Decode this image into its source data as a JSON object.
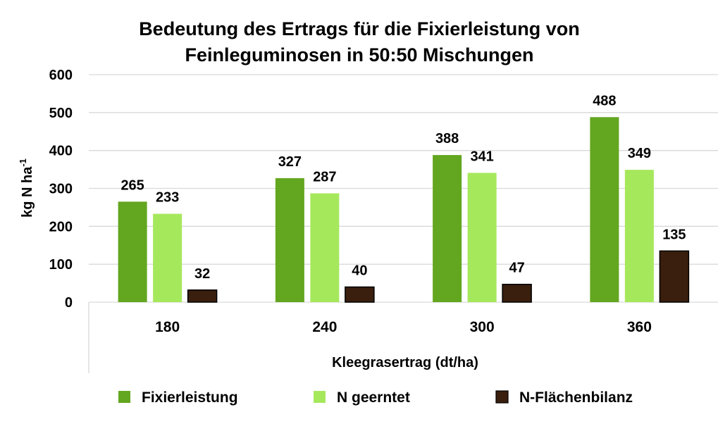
{
  "chart_data": {
    "type": "bar",
    "title_line1": "Bedeutung des Ertrags für die Fixierleistung von",
    "title_line2": "Feinleguminosen in 50:50 Mischungen",
    "xlabel": "Kleegrasertrag (dt/ha)",
    "ylabel_main": "kg N ha",
    "ylabel_sup": "-1",
    "ylim": [
      0,
      600
    ],
    "yticks": [
      0,
      100,
      200,
      300,
      400,
      500,
      600
    ],
    "categories": [
      "180",
      "240",
      "300",
      "360"
    ],
    "series": [
      {
        "name": "Fixierleistung",
        "color": "#63a61f",
        "values": [
          265,
          327,
          388,
          488
        ]
      },
      {
        "name": "N geerntet",
        "color": "#a6e85c",
        "values": [
          233,
          287,
          341,
          349
        ]
      },
      {
        "name": "N-Flächenbilanz",
        "color": "#3a1f0e",
        "values": [
          32,
          40,
          47,
          135
        ]
      }
    ],
    "grid": true,
    "legend_position": "bottom"
  }
}
